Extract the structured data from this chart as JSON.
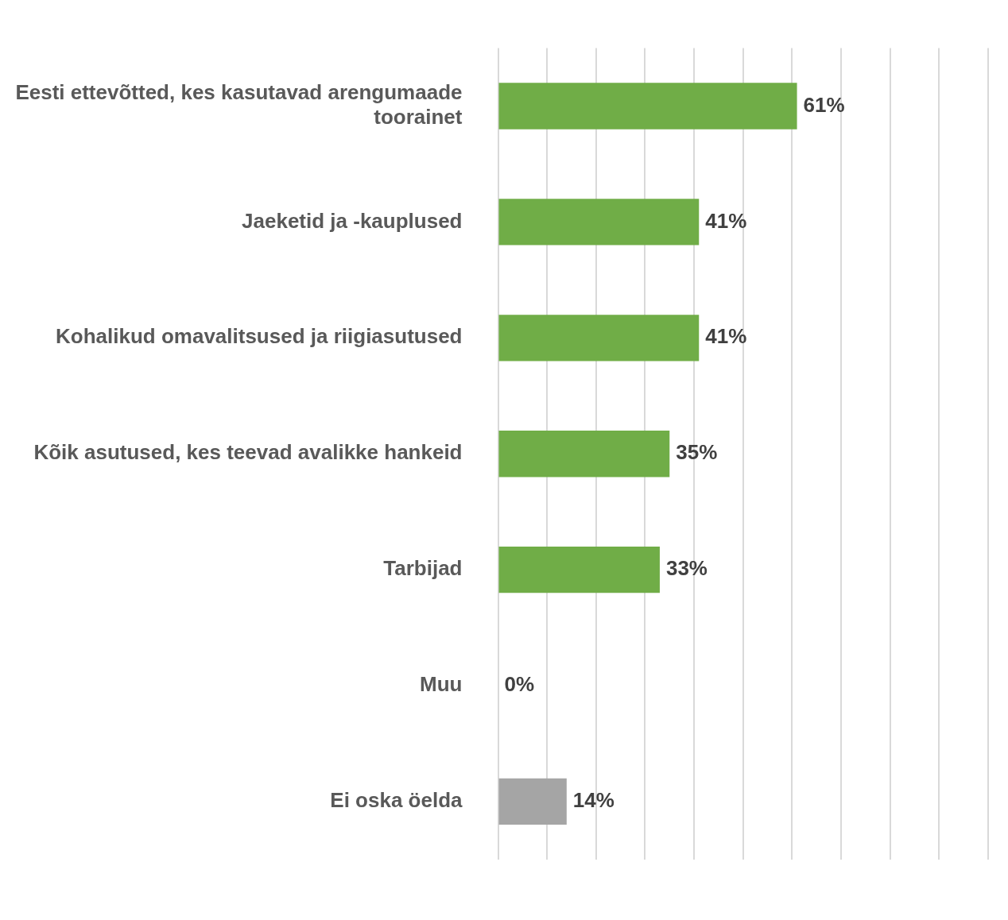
{
  "chart_data": {
    "type": "bar",
    "orientation": "horizontal",
    "categories": [
      "Eesti ettevõtted, kes kasutavad arengumaade toorainet",
      "Jaeketid ja -kauplused",
      "Kohalikud omavalitsused ja riigiasutused",
      "Kõik asutused, kes teevad avalikke hankeid",
      "Tarbijad",
      "Muu",
      "Ei oska öelda"
    ],
    "values": [
      61,
      41,
      41,
      35,
      33,
      0,
      14
    ],
    "colors": [
      "#70ad47",
      "#70ad47",
      "#70ad47",
      "#70ad47",
      "#70ad47",
      "#70ad47",
      "#a5a5a5"
    ],
    "value_labels": [
      "61%",
      "41%",
      "41%",
      "35%",
      "33%",
      "0%",
      "14%"
    ],
    "xlim": [
      0,
      100
    ],
    "xticks": [
      {
        "value": 0,
        "label": null
      },
      {
        "value": 10,
        "label": null
      },
      {
        "value": 20,
        "label": null
      },
      {
        "value": 30,
        "label": null
      },
      {
        "value": 40,
        "label": null
      },
      {
        "value": 50,
        "label": null
      },
      {
        "value": 60,
        "label": null
      },
      {
        "value": 70,
        "label": null
      },
      {
        "value": 80,
        "label": null
      },
      {
        "value": 90,
        "label": null
      },
      {
        "value": 100,
        "label": null
      }
    ],
    "grid": "x",
    "tick_labels": "y",
    "legend": false
  }
}
